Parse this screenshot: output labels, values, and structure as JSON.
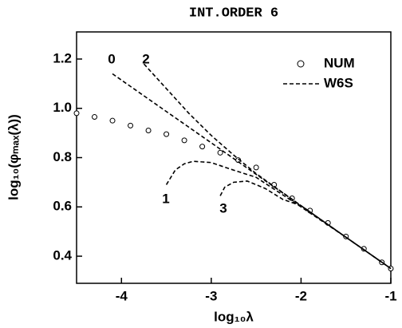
{
  "chart_data": {
    "type": "line",
    "title": "INT.ORDER 6",
    "x_label": "log₁₀λ",
    "y_label": "log₁₀(φₘₐₓ(λ))",
    "xlim": [
      -4.5,
      -1
    ],
    "xticks": [
      -4,
      -3,
      -2,
      -1
    ],
    "ylim": [
      0.29,
      1.31
    ],
    "yticks": [
      {
        "value": 0.4,
        "label": "0.4"
      },
      {
        "value": 0.6,
        "label": "0.6"
      },
      {
        "value": 0.8,
        "label": "0.8"
      },
      {
        "value": 1.0,
        "label": "1.0"
      },
      {
        "value": 1.2,
        "label": "1.2"
      }
    ],
    "legend": "upper right",
    "series": [
      {
        "name": "NUM",
        "color": "#000000",
        "marker": "open-circle",
        "x": [
          -4.5,
          -4.3,
          -4.1,
          -3.9,
          -3.7,
          -3.5,
          -3.3,
          -3.1,
          -2.9,
          -2.7,
          -2.5,
          -2.3,
          -2.1,
          -1.9,
          -1.7,
          -1.5,
          -1.3,
          -1.1,
          -1.0
        ],
        "values": [
          0.98,
          0.965,
          0.95,
          0.93,
          0.91,
          0.895,
          0.87,
          0.845,
          0.82,
          0.79,
          0.76,
          0.69,
          0.635,
          0.585,
          0.535,
          0.48,
          0.43,
          0.375,
          0.35
        ]
      },
      {
        "name": "W6S",
        "color": "#000000",
        "dashed": true,
        "curves": [
          {
            "label": "0",
            "x": [
              -4.1,
              -3.5,
              -3,
              -2.5,
              -2,
              -1.5,
              -1
            ],
            "values": [
              1.14,
              0.987,
              0.86,
              0.732,
              0.605,
              0.477,
              0.35
            ]
          },
          {
            "label": "2",
            "x": [
              -3.75,
              -3.5,
              -3.25,
              -3,
              -2.75,
              -2.5,
              -2,
              -1.5,
              -1
            ],
            "values": [
              1.18,
              1.08,
              0.98,
              0.89,
              0.81,
              0.735,
              0.605,
              0.477,
              0.35
            ]
          },
          {
            "label": "1",
            "x": [
              -3.5,
              -3.4,
              -3.3,
              -3.2,
              -3.0,
              -2.8,
              -2.5,
              -2,
              -1.5,
              -1
            ],
            "values": [
              0.69,
              0.75,
              0.775,
              0.785,
              0.78,
              0.755,
              0.72,
              0.6,
              0.477,
              0.35
            ]
          },
          {
            "label": "3",
            "x": [
              -2.9,
              -2.85,
              -2.75,
              -2.6,
              -2.4,
              -2.2,
              -2,
              -1.5,
              -1
            ],
            "values": [
              0.645,
              0.68,
              0.7,
              0.705,
              0.675,
              0.63,
              0.605,
              0.477,
              0.35
            ]
          }
        ]
      }
    ]
  }
}
